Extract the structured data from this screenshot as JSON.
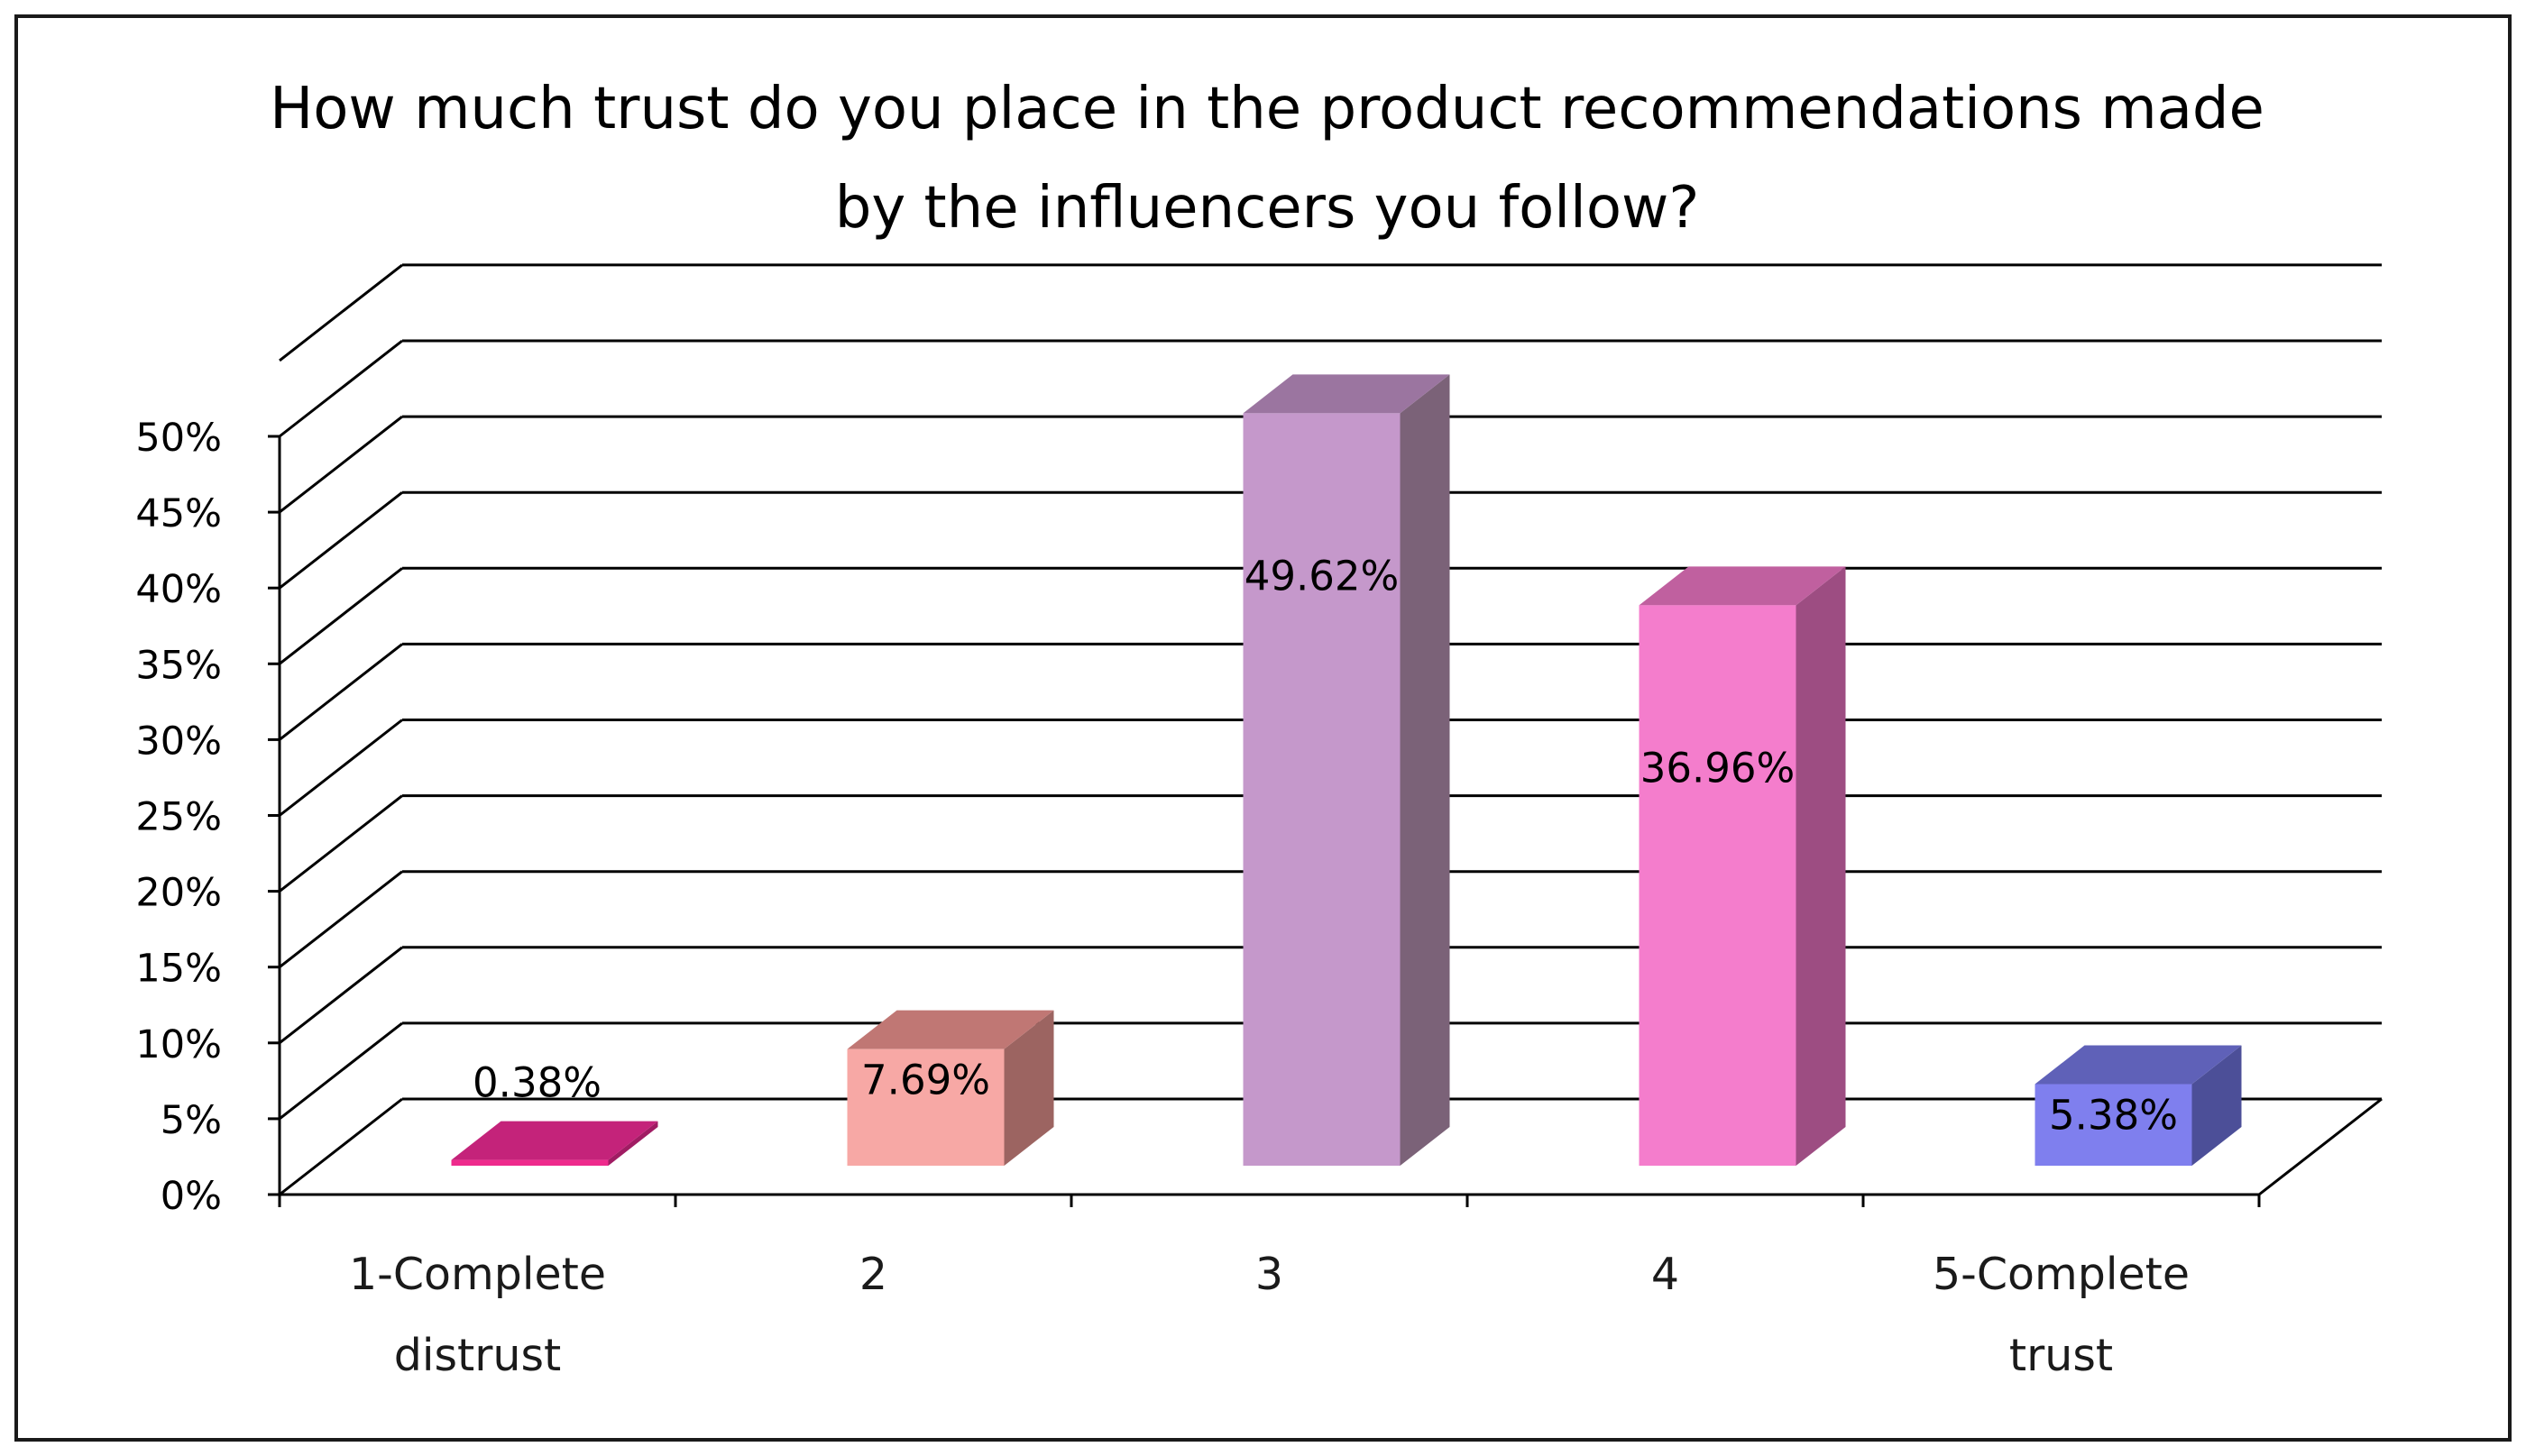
{
  "chart_data": {
    "type": "bar",
    "title_lines": [
      "How much trust do you place in the product recommendations made",
      "by the influencers you follow?"
    ],
    "categories": [
      [
        "1-Complete",
        "distrust"
      ],
      [
        "2"
      ],
      [
        "3"
      ],
      [
        "4"
      ],
      [
        "5-Complete",
        "trust"
      ]
    ],
    "values": [
      0.38,
      7.69,
      49.62,
      36.96,
      5.38
    ],
    "value_labels": [
      "0.38%",
      "7.69%",
      "49.62%",
      "36.96%",
      "5.38%"
    ],
    "ylim": [
      0,
      50
    ],
    "y_ticks": [
      "0%",
      "5%",
      "10%",
      "15%",
      "20%",
      "25%",
      "30%",
      "35%",
      "40%",
      "45%",
      "50%"
    ],
    "grid": true,
    "legend": "none",
    "bar_style": "3d",
    "colors": [
      {
        "front": "#ee2a8c",
        "top": "#c4237a",
        "side": "#a01c63"
      },
      {
        "front": "#f7a8a5",
        "top": "#c07774",
        "side": "#9c6461"
      },
      {
        "front": "#c598cb",
        "top": "#9b75a0",
        "side": "#7b6278"
      },
      {
        "front": "#f47dcc",
        "top": "#c0609f",
        "side": "#9d4d82"
      },
      {
        "front": "#7f7fee",
        "top": "#5f61b8",
        "side": "#4c4f98"
      }
    ]
  }
}
